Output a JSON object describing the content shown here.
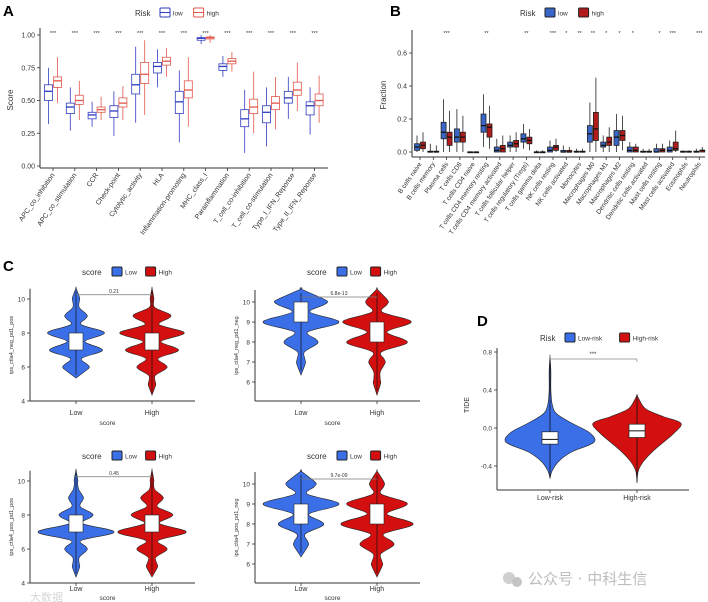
{
  "figure": {
    "watermark_right": "公众号 · 中科生信",
    "watermark_left": "大数据"
  },
  "chart_data": [
    {
      "panel": "A",
      "type": "box",
      "ylabel": "Score",
      "ylim": [
        0,
        1.05
      ],
      "yticks": [
        "0.00",
        "0.25",
        "0.50",
        "0.75",
        "1.00"
      ],
      "ytick_values": [
        0,
        0.25,
        0.5,
        0.75,
        1.0
      ],
      "legend": {
        "title": "Risk",
        "entries": [
          "low",
          "high"
        ],
        "position": "top"
      },
      "colors": {
        "low": "#2e3cbf",
        "high": "#e0574b"
      },
      "categories": [
        "APC_co_inhibition",
        "APC_co_stimulation",
        "CCR",
        "Check-point",
        "Cytolytic_activity",
        "HLA",
        "Inflammation-promoting",
        "MHC_class_I",
        "Parainflammation",
        "T_cell_co-inhibition",
        "T_cell_co-stimulation",
        "Type_I_IFN_Reponse",
        "Type_II_IFN_Reponse"
      ],
      "significance": [
        "***",
        "***",
        "***",
        "***",
        "***",
        "***",
        "***",
        "***",
        "***",
        "***",
        "***",
        "***",
        "***"
      ],
      "series": [
        {
          "name": "low",
          "box": [
            [
              0.32,
              0.5,
              0.57,
              0.62,
              0.75
            ],
            [
              0.27,
              0.4,
              0.45,
              0.48,
              0.6
            ],
            [
              0.3,
              0.36,
              0.39,
              0.41,
              0.49
            ],
            [
              0.23,
              0.37,
              0.42,
              0.46,
              0.57
            ],
            [
              0.33,
              0.55,
              0.62,
              0.7,
              0.91
            ],
            [
              0.6,
              0.71,
              0.76,
              0.79,
              0.89
            ],
            [
              0.18,
              0.4,
              0.49,
              0.57,
              0.73
            ],
            [
              0.93,
              0.96,
              0.975,
              0.98,
              1.0
            ],
            [
              0.68,
              0.73,
              0.76,
              0.78,
              0.84
            ],
            [
              0.1,
              0.3,
              0.36,
              0.43,
              0.58
            ],
            [
              0.15,
              0.33,
              0.41,
              0.46,
              0.6
            ],
            [
              0.36,
              0.48,
              0.52,
              0.57,
              0.68
            ],
            [
              0.24,
              0.39,
              0.46,
              0.49,
              0.6
            ]
          ]
        },
        {
          "name": "high",
          "box": [
            [
              0.48,
              0.6,
              0.65,
              0.68,
              0.83
            ],
            [
              0.35,
              0.47,
              0.5,
              0.54,
              0.65
            ],
            [
              0.35,
              0.41,
              0.43,
              0.45,
              0.53
            ],
            [
              0.35,
              0.45,
              0.48,
              0.52,
              0.61
            ],
            [
              0.39,
              0.63,
              0.7,
              0.79,
              0.96
            ],
            [
              0.68,
              0.77,
              0.8,
              0.83,
              0.9
            ],
            [
              0.3,
              0.52,
              0.58,
              0.65,
              0.83
            ],
            [
              0.94,
              0.97,
              0.98,
              0.985,
              1.0
            ],
            [
              0.72,
              0.78,
              0.8,
              0.82,
              0.87
            ],
            [
              0.25,
              0.4,
              0.45,
              0.51,
              0.72
            ],
            [
              0.28,
              0.43,
              0.48,
              0.53,
              0.68
            ],
            [
              0.42,
              0.54,
              0.58,
              0.64,
              0.79
            ],
            [
              0.33,
              0.46,
              0.5,
              0.55,
              0.69
            ]
          ]
        }
      ]
    },
    {
      "panel": "B",
      "type": "box",
      "ylabel": "Fraction",
      "ylim": [
        0,
        0.72
      ],
      "yticks": [
        "0.0",
        "0.2",
        "0.4",
        "0.6"
      ],
      "ytick_values": [
        0,
        0.2,
        0.4,
        0.6
      ],
      "legend": {
        "title": "Risk",
        "entries": [
          "low",
          "high"
        ],
        "position": "top"
      },
      "colors": {
        "low": "#3a66c8",
        "high": "#b01c1c"
      },
      "categories": [
        "B cells naive",
        "B cells memory",
        "Plasma cells",
        "T cells CD8",
        "T cells CD4 naive",
        "T cells CD4 memory resting",
        "T cells CD4 memory activated",
        "T cells follicular helper",
        "T cells regulatory (Tregs)",
        "T cells gamma delta",
        "NK cells resting",
        "NK cells activated",
        "Monocytes",
        "Macrophages M0",
        "Macrophages M1",
        "Macrophages M2",
        "Dendritic cells resting",
        "Dendritic cells activated",
        "Mast cells resting",
        "Mast cells activated",
        "Eosinophils",
        "Neutrophils"
      ],
      "significance": [
        "",
        "",
        "***",
        "",
        "",
        "**",
        "",
        "",
        "**",
        "",
        "***",
        "*",
        "**",
        "**",
        "*",
        "*",
        "*",
        "",
        "*",
        "***",
        "",
        "***"
      ],
      "series": [
        {
          "name": "low",
          "box": [
            [
              0,
              0.01,
              0.03,
              0.05,
              0.1
            ],
            [
              0,
              0,
              0,
              0.005,
              0.05
            ],
            [
              0,
              0.08,
              0.12,
              0.18,
              0.32
            ],
            [
              0,
              0.06,
              0.09,
              0.14,
              0.26
            ],
            [
              0,
              0,
              0,
              0,
              0
            ],
            [
              0.03,
              0.12,
              0.16,
              0.23,
              0.35
            ],
            [
              0,
              0,
              0.01,
              0.03,
              0.08
            ],
            [
              0,
              0.03,
              0.04,
              0.06,
              0.1
            ],
            [
              0.02,
              0.06,
              0.08,
              0.11,
              0.17
            ],
            [
              0,
              0,
              0,
              0,
              0.01
            ],
            [
              0,
              0,
              0.01,
              0.03,
              0.07
            ],
            [
              0,
              0,
              0,
              0.01,
              0.04
            ],
            [
              0,
              0,
              0,
              0.005,
              0.02
            ],
            [
              0,
              0.06,
              0.11,
              0.16,
              0.3
            ],
            [
              0,
              0.03,
              0.04,
              0.06,
              0.1
            ],
            [
              0,
              0.04,
              0.09,
              0.13,
              0.23
            ],
            [
              0,
              0,
              0.01,
              0.03,
              0.06
            ],
            [
              0,
              0,
              0,
              0.005,
              0.02
            ],
            [
              0,
              0,
              0,
              0.02,
              0.05
            ],
            [
              0,
              0,
              0.01,
              0.03,
              0.07
            ],
            [
              0,
              0,
              0,
              0.005,
              0.01
            ],
            [
              0,
              0,
              0,
              0.005,
              0.02
            ]
          ]
        },
        {
          "name": "high",
          "box": [
            [
              0,
              0.02,
              0.04,
              0.06,
              0.12
            ],
            [
              0,
              0,
              0,
              0.005,
              0.04
            ],
            [
              0,
              0.04,
              0.09,
              0.12,
              0.25
            ],
            [
              0,
              0.06,
              0.09,
              0.12,
              0.22
            ],
            [
              0,
              0,
              0,
              0,
              0
            ],
            [
              0.02,
              0.09,
              0.15,
              0.17,
              0.28
            ],
            [
              0,
              0,
              0.02,
              0.04,
              0.1
            ],
            [
              0,
              0.03,
              0.05,
              0.07,
              0.12
            ],
            [
              0.01,
              0.05,
              0.07,
              0.09,
              0.14
            ],
            [
              0,
              0,
              0,
              0,
              0.01
            ],
            [
              0,
              0.01,
              0.03,
              0.04,
              0.08
            ],
            [
              0,
              0,
              0,
              0.01,
              0.03
            ],
            [
              0,
              0,
              0,
              0.005,
              0.02
            ],
            [
              0,
              0.07,
              0.14,
              0.24,
              0.45
            ],
            [
              0,
              0.04,
              0.06,
              0.09,
              0.15
            ],
            [
              0.01,
              0.07,
              0.1,
              0.13,
              0.22
            ],
            [
              0,
              0,
              0.01,
              0.03,
              0.05
            ],
            [
              0,
              0,
              0,
              0.005,
              0.02
            ],
            [
              0,
              0,
              0.01,
              0.02,
              0.05
            ],
            [
              0,
              0.01,
              0.02,
              0.06,
              0.13
            ],
            [
              0,
              0,
              0,
              0.005,
              0.01
            ],
            [
              0,
              0,
              0.01,
              0.01,
              0.03
            ]
          ]
        }
      ]
    },
    {
      "panel": "C",
      "type": "violin",
      "legend": {
        "title": "score",
        "entries": [
          "Low",
          "High"
        ],
        "position": "top"
      },
      "colors": {
        "Low": "#3b6fe8",
        "High": "#d40f0f"
      },
      "xlabel": "score",
      "categories": [
        "Low",
        "High"
      ],
      "subplots": [
        {
          "ylabel": "ips_ctla4_neg_pd1_pos",
          "pvalue": "0.21",
          "yticks": [
            "4",
            "6",
            "8",
            "10"
          ],
          "ytick_values": [
            4,
            6,
            8,
            10
          ],
          "density": {
            "Low": {
              "6": 0.35,
              "7": 0.7,
              "8": 0.75,
              "9": 0.3,
              "10": 0.1
            },
            "High": {
              "5": 0.1,
              "6": 0.4,
              "7": 0.7,
              "8": 0.85,
              "9": 0.5,
              "10": 0.05
            }
          },
          "box": {
            "Low": [
              7,
              7.5,
              8
            ],
            "High": [
              7,
              7.5,
              8
            ]
          }
        },
        {
          "ylabel": "ips_ctla4_neg_pd1_neg",
          "pvalue": "6.8e-13",
          "yticks": [
            "6",
            "7",
            "8",
            "9",
            "10"
          ],
          "ytick_values": [
            6,
            7,
            8,
            9,
            10
          ],
          "density": {
            "Low": {
              "7": 0.12,
              "8": 0.45,
              "9": 1.0,
              "10": 0.7
            },
            "High": {
              "6": 0.1,
              "7": 0.22,
              "8": 0.8,
              "9": 0.9,
              "10": 0.3
            }
          },
          "box": {
            "Low": [
              9,
              9.5,
              10
            ],
            "High": [
              8,
              8.5,
              9
            ]
          }
        },
        {
          "ylabel": "ips_ctla4_pos_pd1_pos",
          "pvalue": "0.45",
          "yticks": [
            "4",
            "6",
            "8",
            "10"
          ],
          "ytick_values": [
            4,
            6,
            8,
            10
          ],
          "density": {
            "Low": {
              "5": 0.1,
              "6": 0.3,
              "7": 1.0,
              "8": 0.45,
              "9": 0.2,
              "10": 0.05
            },
            "High": {
              "5": 0.15,
              "6": 0.4,
              "7": 0.9,
              "8": 0.55,
              "9": 0.3,
              "10": 0.05
            }
          },
          "box": {
            "Low": [
              7,
              7.5,
              8
            ],
            "High": [
              7,
              7.5,
              8
            ]
          }
        },
        {
          "ylabel": "ips_ctla4_pos_pd1_neg",
          "pvalue": "9.7e-09",
          "yticks": [
            "6",
            "7",
            "8",
            "9",
            "10"
          ],
          "ytick_values": [
            6,
            7,
            8,
            9,
            10
          ],
          "density": {
            "Low": {
              "7": 0.2,
              "8": 0.6,
              "9": 1.0,
              "10": 0.4
            },
            "High": {
              "6": 0.15,
              "7": 0.45,
              "8": 0.95,
              "9": 0.8,
              "10": 0.2
            }
          },
          "box": {
            "Low": [
              8,
              8.5,
              9
            ],
            "High": [
              8,
              8.5,
              9
            ]
          }
        }
      ]
    },
    {
      "panel": "D",
      "type": "violin",
      "ylabel": "TIDE",
      "legend": {
        "title": "Risk",
        "entries": [
          "Low-risk",
          "High-risk"
        ],
        "position": "top"
      },
      "colors": {
        "Low-risk": "#3b6fe8",
        "High-risk": "#d40f0f"
      },
      "categories": [
        "Low-risk",
        "High-risk"
      ],
      "significance": "***",
      "yticks": [
        "-0.4",
        "0.0",
        "0.4",
        "0.8"
      ],
      "ytick_values": [
        -0.4,
        0,
        0.4,
        0.8
      ],
      "density": {
        "Low-risk": [
          [
            -0.53,
            0
          ],
          [
            -0.45,
            0.05
          ],
          [
            -0.35,
            0.2
          ],
          [
            -0.25,
            0.5
          ],
          [
            -0.15,
            1.0
          ],
          [
            -0.05,
            0.9
          ],
          [
            0.05,
            0.5
          ],
          [
            0.15,
            0.15
          ],
          [
            0.25,
            0.05
          ],
          [
            0.4,
            0.02
          ],
          [
            0.6,
            0.02
          ],
          [
            0.75,
            0
          ]
        ],
        "High-risk": [
          [
            -0.58,
            0
          ],
          [
            -0.45,
            0.03
          ],
          [
            -0.35,
            0.15
          ],
          [
            -0.25,
            0.35
          ],
          [
            -0.15,
            0.6
          ],
          [
            -0.05,
            0.85
          ],
          [
            0.05,
            1.0
          ],
          [
            0.12,
            0.6
          ],
          [
            0.2,
            0.2
          ],
          [
            0.3,
            0.05
          ],
          [
            0.35,
            0
          ]
        ]
      },
      "box": {
        "Low-risk": [
          -0.17,
          -0.12,
          -0.04
        ],
        "High-risk": [
          -0.1,
          -0.03,
          0.04
        ]
      }
    }
  ]
}
